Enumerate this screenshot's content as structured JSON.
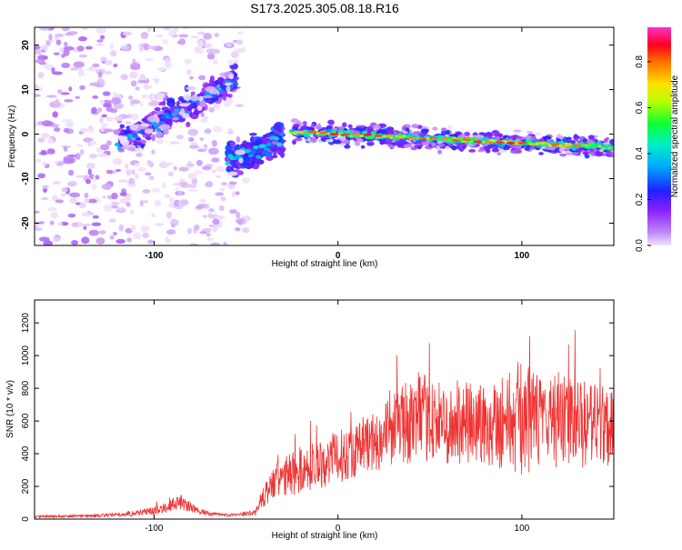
{
  "title": "S173.2025.305.08.18.R16",
  "chart_data": [
    {
      "type": "heatmap",
      "title": "S173.2025.305.08.18.R16",
      "xlabel": "Height of straight line (km)",
      "ylabel": "Frequency (Hz)",
      "xlim": [
        -165,
        150
      ],
      "ylim": [
        -25,
        24
      ],
      "xticks": [
        -100,
        0,
        100
      ],
      "yticks": [
        -20,
        -10,
        0,
        10,
        20
      ],
      "colorbar": {
        "label": "Normalized spectral amplitude",
        "range": [
          0,
          0.95
        ],
        "ticks": [
          0.0,
          0.2,
          0.4,
          0.6,
          0.8
        ],
        "tick_labels": [
          "0.0",
          "0.2",
          "0.4",
          "0.6",
          "0.8"
        ],
        "colors": [
          "#f2e4fb",
          "#9b30ff",
          "#2020ff",
          "#00d8ff",
          "#00ff60",
          "#ffff00",
          "#ff8000",
          "#ff0000",
          "#ff20c0"
        ]
      },
      "features": [
        {
          "name": "main-signal-band",
          "x": [
            -25,
            150
          ],
          "freq_start": 0.5,
          "freq_end": -3,
          "peak_amplitude": 0.9
        },
        {
          "name": "rising-branch",
          "x": [
            -120,
            -55
          ],
          "freq_start": -2,
          "freq_end": 12,
          "peak_amplitude": 0.25
        },
        {
          "name": "falling-branch",
          "x": [
            -60,
            -30
          ],
          "freq_start": -6,
          "freq_end": -1,
          "peak_amplitude": 0.3
        },
        {
          "name": "noise-region",
          "x": [
            -165,
            -50
          ],
          "freq_range": [
            -25,
            24
          ],
          "peak_amplitude": 0.1
        }
      ]
    },
    {
      "type": "line",
      "xlabel": "Height of straight line (km)",
      "ylabel": "SNR (10 * v/v)",
      "xlim": [
        -165,
        150
      ],
      "ylim": [
        0,
        1340
      ],
      "xticks": [
        -100,
        0,
        100
      ],
      "yticks": [
        0,
        200,
        400,
        600,
        800,
        1000,
        1200
      ],
      "color": "#ee3333",
      "series": [
        {
          "name": "SNR",
          "x": [
            -165,
            -140,
            -120,
            -100,
            -90,
            -85,
            -80,
            -70,
            -55,
            -45,
            -40,
            -35,
            -25,
            -15,
            0,
            15,
            25,
            30,
            40,
            50,
            60,
            70,
            80,
            90,
            100,
            110,
            120,
            130,
            140,
            150
          ],
          "mean": [
            15,
            18,
            25,
            50,
            90,
            100,
            70,
            30,
            25,
            40,
            150,
            220,
            280,
            320,
            380,
            450,
            510,
            560,
            600,
            620,
            560,
            580,
            590,
            600,
            620,
            600,
            610,
            580,
            570,
            590
          ],
          "spread": [
            10,
            12,
            18,
            35,
            55,
            70,
            45,
            18,
            12,
            30,
            100,
            160,
            200,
            220,
            230,
            250,
            300,
            320,
            380,
            380,
            340,
            380,
            400,
            420,
            520,
            400,
            420,
            380,
            380,
            380
          ]
        }
      ]
    }
  ]
}
